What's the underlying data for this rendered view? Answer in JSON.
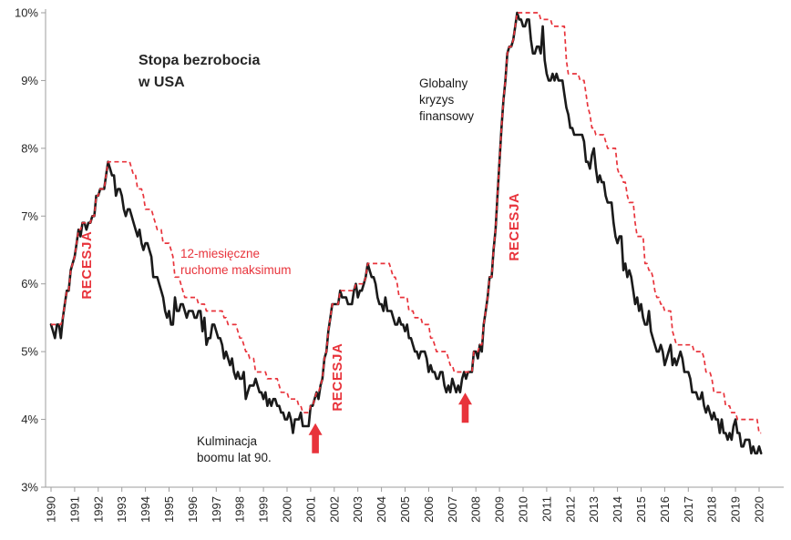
{
  "chart_data": {
    "type": "line",
    "title": "Stopa bezrobocia\nw USA",
    "xlabel": "",
    "ylabel": "",
    "ylim": [
      3,
      10
    ],
    "grid": false,
    "legend_position": "none",
    "x_start_year": 1990,
    "x_tick_labels": [
      "1990",
      "1991",
      "1992",
      "1993",
      "1994",
      "1995",
      "1996",
      "1997",
      "1998",
      "1999",
      "2000",
      "2001",
      "2002",
      "2003",
      "2004",
      "2005",
      "2006",
      "2007",
      "2008",
      "2009",
      "2010",
      "2011",
      "2012",
      "2013",
      "2014",
      "2015",
      "2016",
      "2017",
      "2018",
      "2019",
      "2020"
    ],
    "y_tick_labels": [
      "3%",
      "4%",
      "5%",
      "6%",
      "7%",
      "8%",
      "9%",
      "10%"
    ],
    "series": [
      {
        "name": "Stopa bezrobocia w USA",
        "color": "#1a1a1a",
        "style": "solid",
        "width": 2.6,
        "frequency": "monthly",
        "values": [
          5.4,
          5.3,
          5.2,
          5.4,
          5.4,
          5.2,
          5.5,
          5.7,
          5.9,
          5.9,
          6.2,
          6.3,
          6.4,
          6.6,
          6.8,
          6.7,
          6.9,
          6.9,
          6.8,
          6.9,
          6.9,
          7.0,
          7.0,
          7.3,
          7.3,
          7.4,
          7.4,
          7.4,
          7.6,
          7.8,
          7.7,
          7.6,
          7.6,
          7.3,
          7.4,
          7.4,
          7.3,
          7.1,
          7.0,
          7.1,
          7.1,
          7.0,
          6.9,
          6.8,
          6.7,
          6.8,
          6.6,
          6.5,
          6.6,
          6.6,
          6.5,
          6.4,
          6.1,
          6.1,
          6.1,
          6.0,
          5.9,
          5.8,
          5.6,
          5.5,
          5.6,
          5.4,
          5.4,
          5.8,
          5.6,
          5.6,
          5.7,
          5.7,
          5.6,
          5.5,
          5.6,
          5.6,
          5.6,
          5.5,
          5.5,
          5.6,
          5.6,
          5.3,
          5.5,
          5.1,
          5.2,
          5.2,
          5.4,
          5.4,
          5.3,
          5.2,
          5.2,
          5.1,
          4.9,
          5.0,
          4.9,
          4.8,
          4.9,
          4.7,
          4.6,
          4.7,
          4.6,
          4.6,
          4.7,
          4.3,
          4.4,
          4.5,
          4.5,
          4.5,
          4.6,
          4.5,
          4.4,
          4.4,
          4.3,
          4.4,
          4.2,
          4.3,
          4.2,
          4.3,
          4.3,
          4.2,
          4.2,
          4.1,
          4.1,
          4.0,
          4.0,
          4.1,
          4.0,
          3.8,
          4.0,
          4.0,
          4.0,
          4.1,
          3.9,
          3.9,
          3.9,
          3.9,
          4.2,
          4.2,
          4.3,
          4.4,
          4.3,
          4.5,
          4.6,
          4.9,
          5.0,
          5.3,
          5.5,
          5.7,
          5.7,
          5.7,
          5.7,
          5.9,
          5.8,
          5.8,
          5.8,
          5.7,
          5.7,
          5.7,
          5.9,
          6.0,
          5.8,
          5.9,
          5.9,
          6.0,
          6.1,
          6.3,
          6.2,
          6.1,
          6.1,
          6.0,
          5.8,
          5.7,
          5.7,
          5.6,
          5.8,
          5.6,
          5.6,
          5.6,
          5.5,
          5.4,
          5.4,
          5.5,
          5.4,
          5.4,
          5.3,
          5.4,
          5.2,
          5.2,
          5.1,
          5.0,
          5.0,
          4.9,
          5.0,
          5.0,
          5.0,
          4.9,
          4.7,
          4.8,
          4.7,
          4.7,
          4.6,
          4.6,
          4.7,
          4.7,
          4.5,
          4.4,
          4.5,
          4.4,
          4.6,
          4.5,
          4.4,
          4.5,
          4.4,
          4.6,
          4.7,
          4.6,
          4.7,
          4.7,
          4.7,
          5.0,
          5.0,
          4.9,
          5.1,
          5.0,
          5.4,
          5.6,
          5.8,
          6.1,
          6.1,
          6.5,
          6.8,
          7.3,
          7.8,
          8.3,
          8.7,
          9.0,
          9.4,
          9.5,
          9.5,
          9.6,
          9.8,
          10.0,
          9.9,
          9.9,
          9.8,
          9.8,
          9.9,
          9.9,
          9.6,
          9.4,
          9.4,
          9.5,
          9.5,
          9.4,
          9.8,
          9.3,
          9.1,
          9.0,
          9.0,
          9.1,
          9.0,
          9.1,
          9.0,
          9.0,
          9.0,
          8.8,
          8.6,
          8.5,
          8.3,
          8.3,
          8.2,
          8.2,
          8.2,
          8.2,
          8.2,
          8.1,
          7.8,
          7.8,
          7.7,
          7.9,
          8.0,
          7.7,
          7.5,
          7.6,
          7.5,
          7.5,
          7.3,
          7.2,
          7.2,
          7.2,
          6.9,
          6.7,
          6.6,
          6.7,
          6.7,
          6.2,
          6.3,
          6.1,
          6.2,
          6.1,
          5.9,
          5.7,
          5.8,
          5.6,
          5.7,
          5.5,
          5.4,
          5.4,
          5.6,
          5.3,
          5.2,
          5.1,
          5.0,
          5.0,
          5.1,
          5.0,
          4.8,
          4.9,
          5.0,
          5.1,
          4.8,
          4.9,
          4.8,
          4.9,
          5.0,
          4.9,
          4.7,
          4.7,
          4.7,
          4.6,
          4.4,
          4.4,
          4.4,
          4.3,
          4.3,
          4.4,
          4.2,
          4.1,
          4.2,
          4.1,
          4.0,
          4.1,
          4.0,
          4.0,
          3.8,
          4.0,
          3.8,
          3.8,
          3.7,
          3.8,
          3.7,
          3.9,
          4.0,
          3.8,
          3.8,
          3.6,
          3.6,
          3.7,
          3.7,
          3.7,
          3.5,
          3.6,
          3.5,
          3.5,
          3.6,
          3.5
        ]
      },
      {
        "name": "12-miesięczne ruchome maksimum",
        "color": "#e8333b",
        "style": "dashed",
        "width": 1.7,
        "derived": "rolling_max_12_months_of_series_0"
      }
    ],
    "annotations": {
      "moving_max": "12-miesięczne\nruchome maksimum",
      "global_crisis": "Globalny\nkryzys\nfinansowy",
      "boom_culmination": "Kulminacja\nboomu lat 90.",
      "recesja_1991": "RECESJA",
      "recesja_2001": "RECESJA",
      "recesja_2008": "RECESJA",
      "arrows": [
        {
          "year": 2001.2,
          "percent": 3.97
        },
        {
          "year": 2007.55,
          "percent": 4.42
        }
      ],
      "annotation_red": "#e8333b"
    },
    "axis_color": "#9e9e9e",
    "tick_label_color": "#262626"
  }
}
